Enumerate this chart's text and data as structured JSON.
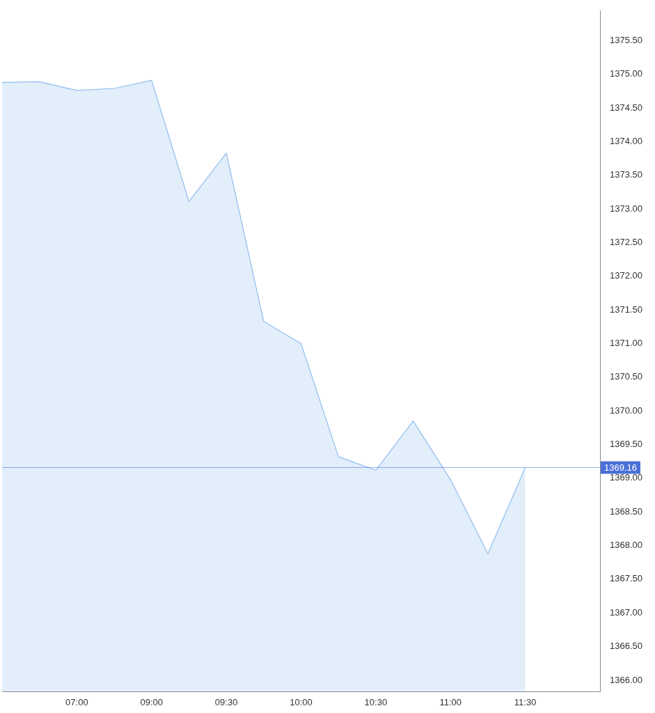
{
  "chart_data": {
    "type": "area",
    "categories": [
      null,
      null,
      "07:00",
      null,
      "09:00",
      null,
      "09:30",
      null,
      "10:00",
      null,
      "10:30",
      null,
      "11:00",
      null,
      "11:30",
      null,
      null
    ],
    "series": [
      {
        "color": "#8fbdee",
        "values": [
          1374.88,
          1374.89,
          1374.76,
          1374.79,
          1374.91,
          1373.11,
          1373.83,
          1371.33,
          1371.0,
          1369.32,
          1369.12,
          1369.85,
          1368.98,
          1367.88,
          1369.16,
          null,
          null
        ]
      }
    ],
    "ylim": [
      1365.83,
      1375.94
    ],
    "yticks": [
      {
        "value": 1366,
        "label": "1366.00"
      },
      {
        "value": 1366.5,
        "label": "1366.50"
      },
      {
        "value": 1367,
        "label": "1367.00"
      },
      {
        "value": 1367.5,
        "label": "1367.50"
      },
      {
        "value": 1368,
        "label": "1368.00"
      },
      {
        "value": 1368.5,
        "label": "1368.50"
      },
      {
        "value": 1369,
        "label": "1369.00"
      },
      {
        "value": 1369.5,
        "label": "1369.50"
      },
      {
        "value": 1370,
        "label": "1370.00"
      },
      {
        "value": 1370.5,
        "label": "1370.50"
      },
      {
        "value": 1371,
        "label": "1371.00"
      },
      {
        "value": 1371.5,
        "label": "1371.50"
      },
      {
        "value": 1372,
        "label": "1372.00"
      },
      {
        "value": 1372.5,
        "label": "1372.50"
      },
      {
        "value": 1373,
        "label": "1373.00"
      },
      {
        "value": 1373.5,
        "label": "1373.50"
      },
      {
        "value": 1374,
        "label": "1374.00"
      },
      {
        "value": 1374.5,
        "label": "1374.50"
      },
      {
        "value": 1375,
        "label": "1375.00"
      },
      {
        "value": 1375.5,
        "label": "1375.50"
      }
    ],
    "ref_lines": [
      {
        "axis": "y",
        "value": 1369.16,
        "label": "1369.16",
        "color": "#4a6fd8"
      }
    ],
    "grid": false,
    "legend": false,
    "marker": "none"
  }
}
